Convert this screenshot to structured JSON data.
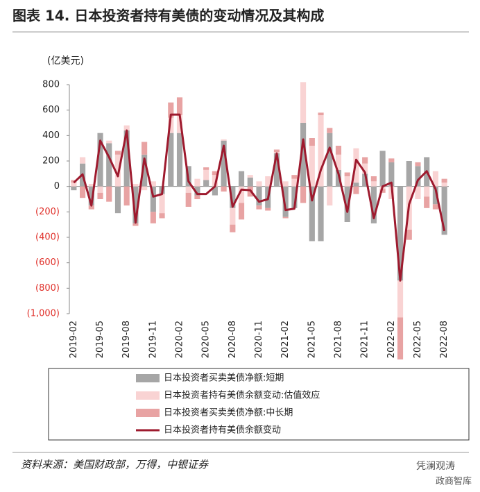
{
  "chart_data": {
    "type": "bar_line",
    "title": "图表 14. 日本投资者持有美债的变动情况及其构成",
    "y_axis_label": "(亿美元)",
    "source": "资料来源：美国财政部，万得，中银证券",
    "watermark": [
      "凭澜观涛",
      "政商智库"
    ],
    "categories": [
      "2019-02",
      null,
      null,
      "2019-05",
      null,
      null,
      "2019-08",
      null,
      null,
      "2019-11",
      null,
      null,
      "2020-02",
      null,
      null,
      "2020-05",
      null,
      null,
      "2020-08",
      null,
      null,
      "2020-11",
      null,
      null,
      "2021-02",
      null,
      null,
      "2021-05",
      null,
      null,
      "2021-08",
      null,
      null,
      "2021-11",
      null,
      null,
      "2022-02",
      null,
      null,
      "2022-05",
      null,
      null,
      "2022-08"
    ],
    "ylim": [
      -1000,
      800
    ],
    "yticks": [
      800,
      600,
      400,
      200,
      0,
      {
        "value": -200,
        "label": "(200)"
      },
      {
        "value": -400,
        "label": "(400)"
      },
      {
        "value": -600,
        "label": "(600)"
      },
      {
        "value": -800,
        "label": "(800)"
      },
      {
        "value": -1000,
        "label": "(1,000)"
      }
    ],
    "negative_tick_color": "#e0302a",
    "series": [
      {
        "name": "日本投资者买卖美债净额:短期",
        "kind": "bar",
        "color": "#a6a6a6",
        "values": [
          -30,
          180,
          -150,
          420,
          340,
          -210,
          440,
          -290,
          250,
          -200,
          -60,
          420,
          420,
          160,
          -70,
          50,
          -70,
          360,
          -170,
          120,
          70,
          -150,
          -170,
          260,
          -240,
          -170,
          500,
          -430,
          -430,
          420,
          130,
          -280,
          30,
          100,
          -290,
          280,
          190,
          -740,
          200,
          160,
          230,
          -140,
          -380
        ]
      },
      {
        "name": "日本投资者持有美债余额变动:估值效应",
        "kind": "bar",
        "color": "#f9d3d3",
        "values": [
          30,
          50,
          20,
          -50,
          20,
          250,
          40,
          20,
          -30,
          40,
          -150,
          120,
          140,
          -50,
          60,
          80,
          90,
          10,
          -130,
          -130,
          20,
          40,
          80,
          10,
          40,
          60,
          320,
          320,
          560,
          -150,
          120,
          80,
          270,
          80,
          40,
          -20,
          -100,
          -290,
          -340,
          -100,
          -80,
          120,
          30
        ]
      },
      {
        "name": "日本投资者买卖美债净额:中长期",
        "kind": "bar",
        "color": "#e8a3a3",
        "values": [
          20,
          -90,
          -30,
          -50,
          -120,
          30,
          -150,
          -20,
          100,
          -90,
          -40,
          120,
          140,
          -110,
          -30,
          20,
          30,
          -40,
          -60,
          -130,
          -80,
          -30,
          -20,
          20,
          -10,
          30,
          -130,
          60,
          20,
          40,
          70,
          30,
          -60,
          50,
          40,
          -30,
          30,
          -330,
          -80,
          30,
          -90,
          -40,
          30
        ]
      },
      {
        "name": "日本投资者持有美债余额变动",
        "kind": "line",
        "color": "#9e1a2e",
        "values": [
          30,
          95,
          -150,
          360,
          230,
          80,
          440,
          -285,
          220,
          -80,
          -60,
          565,
          565,
          40,
          -60,
          -60,
          0,
          320,
          -160,
          -25,
          -30,
          -120,
          -100,
          260,
          -185,
          -175,
          370,
          -110,
          130,
          305,
          100,
          -200,
          210,
          110,
          -250,
          0,
          30,
          -740,
          -140,
          50,
          120,
          -20,
          -350
        ]
      }
    ]
  }
}
